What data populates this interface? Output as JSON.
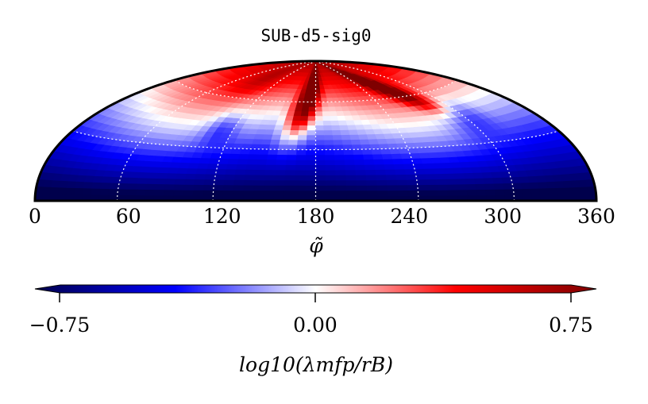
{
  "chart_data": {
    "type": "heatmap",
    "projection": "half-hammer (northern hemisphere)",
    "title": "SUB-d5-sig0",
    "xlabel": "φ̃",
    "xlim": [
      0,
      360
    ],
    "xticks": [
      "0",
      "60",
      "120",
      "180",
      "240",
      "300",
      "360"
    ],
    "grid": true,
    "colormap": "seismic",
    "colorbar": {
      "label": "log10(λmfp/rB)",
      "vmin": -0.75,
      "vmax": 0.75,
      "ticks": [
        "−0.75",
        "0.00",
        "0.75"
      ],
      "extend": "both",
      "orientation": "horizontal"
    },
    "features": [
      {
        "name": "equatorial band",
        "lat_range": [
          0,
          20
        ],
        "log_value": -0.75
      },
      {
        "name": "red streak",
        "lon_center": 170,
        "lat_range": [
          20,
          90
        ],
        "log_value": 0.55
      },
      {
        "name": "red streak",
        "lon_center": 250,
        "lat_range": [
          40,
          90
        ],
        "log_value": 0.5
      },
      {
        "name": "polar cap",
        "lat_range": [
          70,
          90
        ],
        "log_value": 0.3
      }
    ]
  },
  "colors": {
    "neg": "#00007f",
    "mid": "#ffffff",
    "pos": "#7f0000"
  }
}
